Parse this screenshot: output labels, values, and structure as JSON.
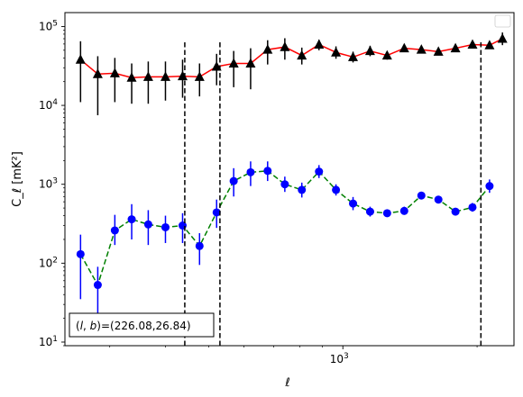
{
  "chart_data": {
    "type": "line",
    "xlabel": "ℓ",
    "ylabel": "C_ℓ  [mK²]",
    "xscale": "log",
    "yscale": "log",
    "xlim": [
      238,
      2420
    ],
    "ylim": [
      9,
      150000
    ],
    "x_ticks": [
      {
        "value": 1000,
        "base": "10",
        "exp": "3"
      }
    ],
    "y_ticks": [
      {
        "value": 10,
        "base": "10",
        "exp": "1"
      },
      {
        "value": 100,
        "base": "10",
        "exp": "2"
      },
      {
        "value": 1000,
        "base": "10",
        "exp": "3"
      },
      {
        "value": 10000,
        "base": "10",
        "exp": "4"
      },
      {
        "value": 100000,
        "base": "10",
        "exp": "5"
      }
    ],
    "vlines": [
      442,
      530,
      2040
    ],
    "grid": false,
    "legend": "top-right (empty)",
    "annotation": "(l, b)=(226.08,26.84)",
    "annotation_parts": {
      "l": "l",
      "b": "b",
      "values": "=(226.08,26.84)"
    },
    "series": [
      {
        "color": "#000000",
        "line_color": "#ff0000",
        "line_style": "solid",
        "marker": "triangle",
        "points": [
          {
            "x": 258,
            "y": 38000,
            "lo": 11000,
            "hi": 65000
          },
          {
            "x": 282,
            "y": 25000,
            "lo": 7500,
            "hi": 42000
          },
          {
            "x": 308,
            "y": 25500,
            "lo": 11000,
            "hi": 40000
          },
          {
            "x": 336,
            "y": 22500,
            "lo": 10500,
            "hi": 34000
          },
          {
            "x": 366,
            "y": 23000,
            "lo": 10500,
            "hi": 36000
          },
          {
            "x": 400,
            "y": 23000,
            "lo": 11500,
            "hi": 36000
          },
          {
            "x": 437,
            "y": 23500,
            "lo": 12500,
            "hi": 38000
          },
          {
            "x": 477,
            "y": 23000,
            "lo": 13000,
            "hi": 34000
          },
          {
            "x": 521,
            "y": 31000,
            "lo": 18000,
            "hi": 45000
          },
          {
            "x": 569,
            "y": 34000,
            "lo": 17000,
            "hi": 49000
          },
          {
            "x": 621,
            "y": 34000,
            "lo": 16000,
            "hi": 53000
          },
          {
            "x": 678,
            "y": 51000,
            "lo": 33000,
            "hi": 67000
          },
          {
            "x": 741,
            "y": 55000,
            "lo": 38000,
            "hi": 71000
          },
          {
            "x": 809,
            "y": 43000,
            "lo": 33000,
            "hi": 54000
          },
          {
            "x": 884,
            "y": 59000,
            "lo": 50000,
            "hi": 68000
          },
          {
            "x": 965,
            "y": 47000,
            "lo": 39000,
            "hi": 56000
          },
          {
            "x": 1054,
            "y": 41000,
            "lo": 35000,
            "hi": 48000
          },
          {
            "x": 1151,
            "y": 49000,
            "lo": 42000,
            "hi": 57000
          },
          {
            "x": 1257,
            "y": 43000,
            "lo": 38000,
            "hi": 48000
          },
          {
            "x": 1373,
            "y": 53000,
            "lo": 48000,
            "hi": 59000
          },
          {
            "x": 1500,
            "y": 51000,
            "lo": 46000,
            "hi": 57000
          },
          {
            "x": 1638,
            "y": 48000,
            "lo": 44000,
            "hi": 53000
          },
          {
            "x": 1789,
            "y": 53000,
            "lo": 48000,
            "hi": 58000
          },
          {
            "x": 1953,
            "y": 59000,
            "lo": 54000,
            "hi": 65000
          },
          {
            "x": 2133,
            "y": 58000,
            "lo": 52000,
            "hi": 64000
          },
          {
            "x": 2280,
            "y": 70000,
            "lo": 58000,
            "hi": 84000
          }
        ]
      },
      {
        "color": "#0000ff",
        "line_color": "#008000",
        "line_style": "dashed",
        "marker": "circle",
        "points": [
          {
            "x": 258,
            "y": 130,
            "lo": 35,
            "hi": 230
          },
          {
            "x": 282,
            "y": 53,
            "lo": 20,
            "hi": 90
          },
          {
            "x": 308,
            "y": 260,
            "lo": 170,
            "hi": 410
          },
          {
            "x": 336,
            "y": 360,
            "lo": 200,
            "hi": 560
          },
          {
            "x": 366,
            "y": 310,
            "lo": 170,
            "hi": 470
          },
          {
            "x": 400,
            "y": 285,
            "lo": 180,
            "hi": 400
          },
          {
            "x": 437,
            "y": 300,
            "lo": 180,
            "hi": 430
          },
          {
            "x": 477,
            "y": 165,
            "lo": 95,
            "hi": 240
          },
          {
            "x": 521,
            "y": 440,
            "lo": 280,
            "hi": 640
          },
          {
            "x": 569,
            "y": 1100,
            "lo": 700,
            "hi": 1600
          },
          {
            "x": 621,
            "y": 1420,
            "lo": 950,
            "hi": 1950
          },
          {
            "x": 678,
            "y": 1480,
            "lo": 1100,
            "hi": 1950
          },
          {
            "x": 741,
            "y": 1000,
            "lo": 800,
            "hi": 1250
          },
          {
            "x": 809,
            "y": 850,
            "lo": 680,
            "hi": 1050
          },
          {
            "x": 884,
            "y": 1450,
            "lo": 1200,
            "hi": 1750
          },
          {
            "x": 965,
            "y": 850,
            "lo": 720,
            "hi": 1000
          },
          {
            "x": 1054,
            "y": 570,
            "lo": 470,
            "hi": 690
          },
          {
            "x": 1151,
            "y": 450,
            "lo": 390,
            "hi": 520
          },
          {
            "x": 1257,
            "y": 430,
            "lo": 390,
            "hi": 480
          },
          {
            "x": 1373,
            "y": 460,
            "lo": 410,
            "hi": 520
          },
          {
            "x": 1500,
            "y": 720,
            "lo": 650,
            "hi": 800
          },
          {
            "x": 1638,
            "y": 640,
            "lo": 580,
            "hi": 710
          },
          {
            "x": 1789,
            "y": 450,
            "lo": 410,
            "hi": 500
          },
          {
            "x": 1953,
            "y": 510,
            "lo": 450,
            "hi": 580
          },
          {
            "x": 2133,
            "y": 950,
            "lo": 780,
            "hi": 1150
          }
        ]
      }
    ]
  }
}
